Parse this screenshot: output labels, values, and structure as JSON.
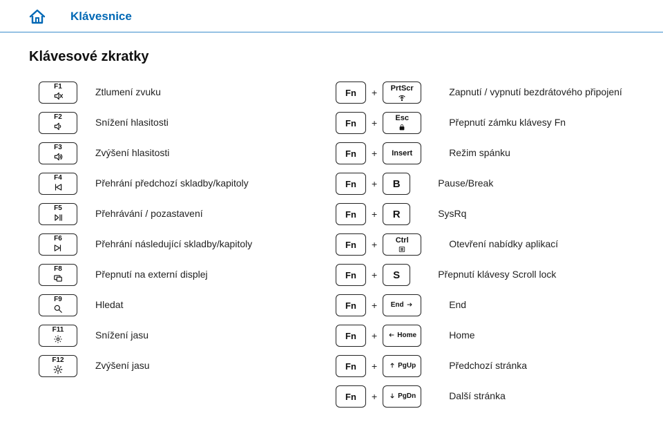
{
  "header": {
    "title": "Klávesnice"
  },
  "subtitle": "Klávesové zkratky",
  "colors": {
    "brand": "#0068b5",
    "rule": "#3a8ccc",
    "text": "#222222",
    "keyborder": "#222222"
  },
  "left": [
    {
      "key": "F1",
      "icon": "mute",
      "desc": "Ztlumení zvuku"
    },
    {
      "key": "F2",
      "icon": "vol-down",
      "desc": "Snížení hlasitosti"
    },
    {
      "key": "F3",
      "icon": "vol-up",
      "desc": "Zvýšení hlasitosti"
    },
    {
      "key": "F4",
      "icon": "prev",
      "desc": "Přehrání předchozí skladby/kapitoly"
    },
    {
      "key": "F5",
      "icon": "playpause",
      "desc": "Přehrávání / pozastavení"
    },
    {
      "key": "F6",
      "icon": "next",
      "desc": "Přehrání následující skladby/kapitoly"
    },
    {
      "key": "F8",
      "icon": "display",
      "desc": "Přepnutí na externí displej"
    },
    {
      "key": "F9",
      "icon": "search",
      "desc": "Hledat"
    },
    {
      "key": "F11",
      "icon": "bright-dn",
      "desc": "Snížení jasu"
    },
    {
      "key": "F12",
      "icon": "bright-up",
      "desc": "Zvýšení jasu"
    }
  ],
  "fn_label": "Fn",
  "plus": "+",
  "right": [
    {
      "second_type": "iconkey",
      "second_label": "PrtScr",
      "second_icon": "wireless",
      "desc": "Zapnutí / vypnutí bezdrátového připojení"
    },
    {
      "second_type": "iconkey",
      "second_label": "Esc",
      "second_icon": "lock",
      "desc": "Přepnutí zámku klávesy Fn"
    },
    {
      "second_type": "wide",
      "second_label": "Insert",
      "desc": "Režim spánku"
    },
    {
      "second_type": "sq",
      "second_label": "B",
      "desc": "Pause/Break"
    },
    {
      "second_type": "sq",
      "second_label": "R",
      "desc": "SysRq"
    },
    {
      "second_type": "iconkey",
      "second_label": "Ctrl",
      "second_icon": "menu",
      "desc": "Otevření nabídky aplikací"
    },
    {
      "second_type": "sq",
      "second_label": "S",
      "desc": "Přepnutí klávesy Scroll lock"
    },
    {
      "second_type": "arrowkey",
      "second_label": "End",
      "arrow": "right",
      "desc": "End"
    },
    {
      "second_type": "arrowkey",
      "second_label": "Home",
      "arrow": "left",
      "desc": "Home"
    },
    {
      "second_type": "arrowkey",
      "second_label": "PgUp",
      "arrow": "up",
      "desc": "Předchozí stránka"
    },
    {
      "second_type": "arrowkey",
      "second_label": "PgDn",
      "arrow": "down",
      "desc": "Další stránka"
    }
  ]
}
